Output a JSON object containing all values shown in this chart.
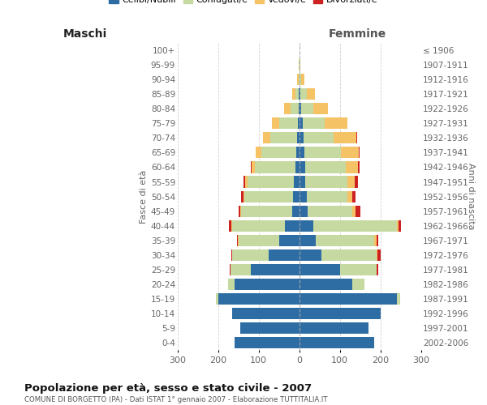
{
  "age_groups": [
    "0-4",
    "5-9",
    "10-14",
    "15-19",
    "20-24",
    "25-29",
    "30-34",
    "35-39",
    "40-44",
    "45-49",
    "50-54",
    "55-59",
    "60-64",
    "65-69",
    "70-74",
    "75-79",
    "80-84",
    "85-89",
    "90-94",
    "95-99",
    "100+"
  ],
  "birth_years": [
    "2002-2006",
    "1997-2001",
    "1992-1996",
    "1987-1991",
    "1982-1986",
    "1977-1981",
    "1972-1976",
    "1967-1971",
    "1962-1966",
    "1957-1961",
    "1952-1956",
    "1947-1951",
    "1942-1946",
    "1937-1941",
    "1932-1936",
    "1927-1931",
    "1922-1926",
    "1917-1921",
    "1912-1916",
    "1907-1911",
    "≤ 1906"
  ],
  "maschi": {
    "celibe": [
      160,
      145,
      165,
      200,
      160,
      120,
      75,
      50,
      35,
      18,
      15,
      13,
      10,
      8,
      6,
      4,
      2,
      1,
      0,
      0,
      0
    ],
    "coniugato": [
      0,
      0,
      0,
      5,
      15,
      50,
      90,
      100,
      130,
      125,
      120,
      115,
      100,
      85,
      65,
      45,
      20,
      8,
      2,
      1,
      0
    ],
    "vedovo": [
      0,
      0,
      0,
      0,
      0,
      0,
      0,
      1,
      2,
      2,
      3,
      5,
      8,
      14,
      18,
      18,
      15,
      8,
      3,
      1,
      0
    ],
    "divorziato": [
      0,
      0,
      0,
      0,
      0,
      1,
      2,
      2,
      6,
      5,
      5,
      5,
      2,
      1,
      1,
      0,
      0,
      0,
      0,
      0,
      0
    ]
  },
  "femmine": {
    "nubile": [
      185,
      170,
      200,
      240,
      130,
      100,
      55,
      40,
      35,
      20,
      18,
      14,
      14,
      12,
      10,
      8,
      5,
      3,
      1,
      0,
      0
    ],
    "coniugata": [
      0,
      0,
      0,
      8,
      30,
      90,
      135,
      145,
      205,
      110,
      100,
      105,
      100,
      90,
      75,
      55,
      30,
      15,
      4,
      1,
      0
    ],
    "vedova": [
      0,
      0,
      0,
      0,
      0,
      1,
      3,
      5,
      5,
      8,
      12,
      18,
      30,
      45,
      55,
      55,
      35,
      20,
      8,
      2,
      1
    ],
    "divorziata": [
      0,
      0,
      0,
      0,
      0,
      3,
      8,
      4,
      5,
      12,
      8,
      8,
      5,
      2,
      2,
      1,
      0,
      0,
      0,
      0,
      0
    ]
  },
  "colors": {
    "celibe": "#2E6DA4",
    "coniugato": "#C5D9A0",
    "vedovo": "#F5C265",
    "divorziato": "#CC2222"
  },
  "xlim": 300,
  "title": "Popolazione per età, sesso e stato civile - 2007",
  "subtitle": "COMUNE DI BORGETTO (PA) - Dati ISTAT 1° gennaio 2007 - Elaborazione TUTTITALIA.IT",
  "ylabel_left": "Fasce di età",
  "ylabel_right": "Anni di nascita",
  "xlabel_left": "Maschi",
  "xlabel_right": "Femmine",
  "legend_labels": [
    "Celibi/Nubili",
    "Coniugati/e",
    "Vedovi/e",
    "Divorziati/e"
  ],
  "background_color": "#ffffff",
  "grid_color": "#cccccc"
}
